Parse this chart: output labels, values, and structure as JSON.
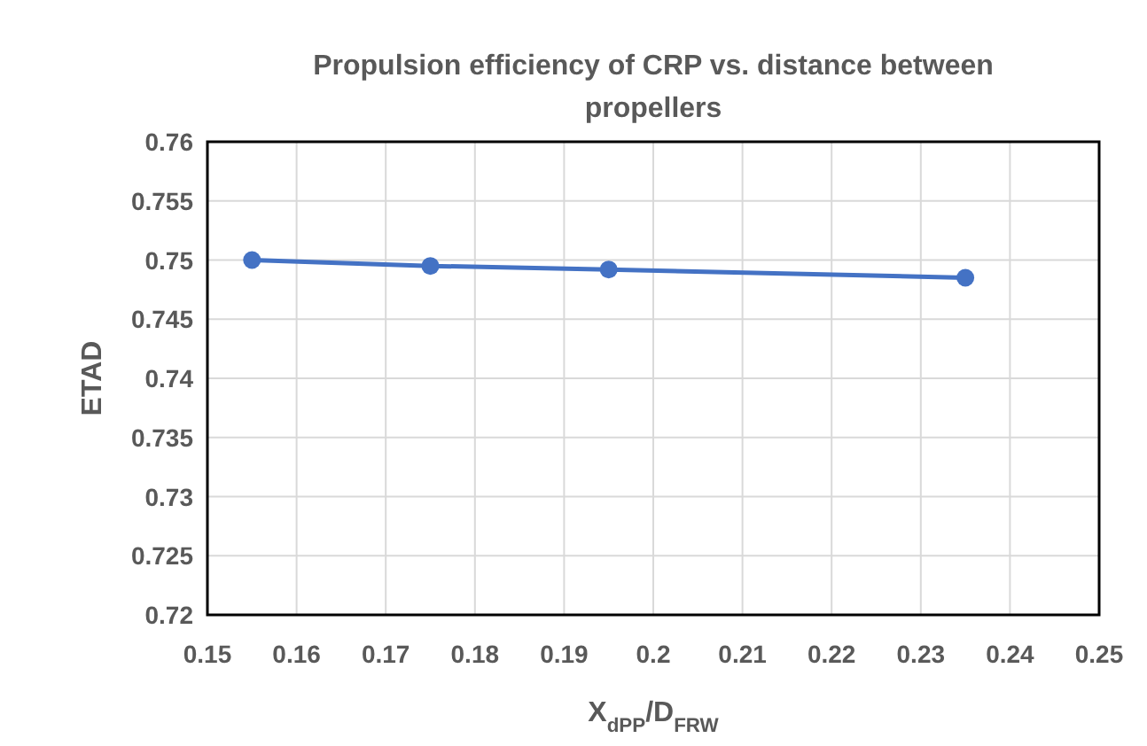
{
  "chart_data": {
    "type": "line",
    "title": "Propulsion efficiency of CRP vs. distance between propellers",
    "xlabel": "X$_{dPP}$/D$_{FRW}$",
    "ylabel": "ETAD",
    "x": [
      0.155,
      0.175,
      0.195,
      0.235
    ],
    "series": [
      {
        "color": "#4472c4",
        "values": [
          0.75,
          0.7495,
          0.7492,
          0.7485
        ]
      }
    ],
    "xlim": [
      0.15,
      0.25
    ],
    "xticks": [
      0.15,
      0.16,
      0.17,
      0.18,
      0.19,
      0.2,
      0.21,
      0.22,
      0.23,
      0.24,
      0.25
    ],
    "ylim": [
      0.72,
      0.76
    ],
    "yticks": [
      0.72,
      0.725,
      0.73,
      0.735,
      0.74,
      0.745,
      0.75,
      0.755,
      0.76
    ],
    "grid": true,
    "marker": "circle"
  }
}
